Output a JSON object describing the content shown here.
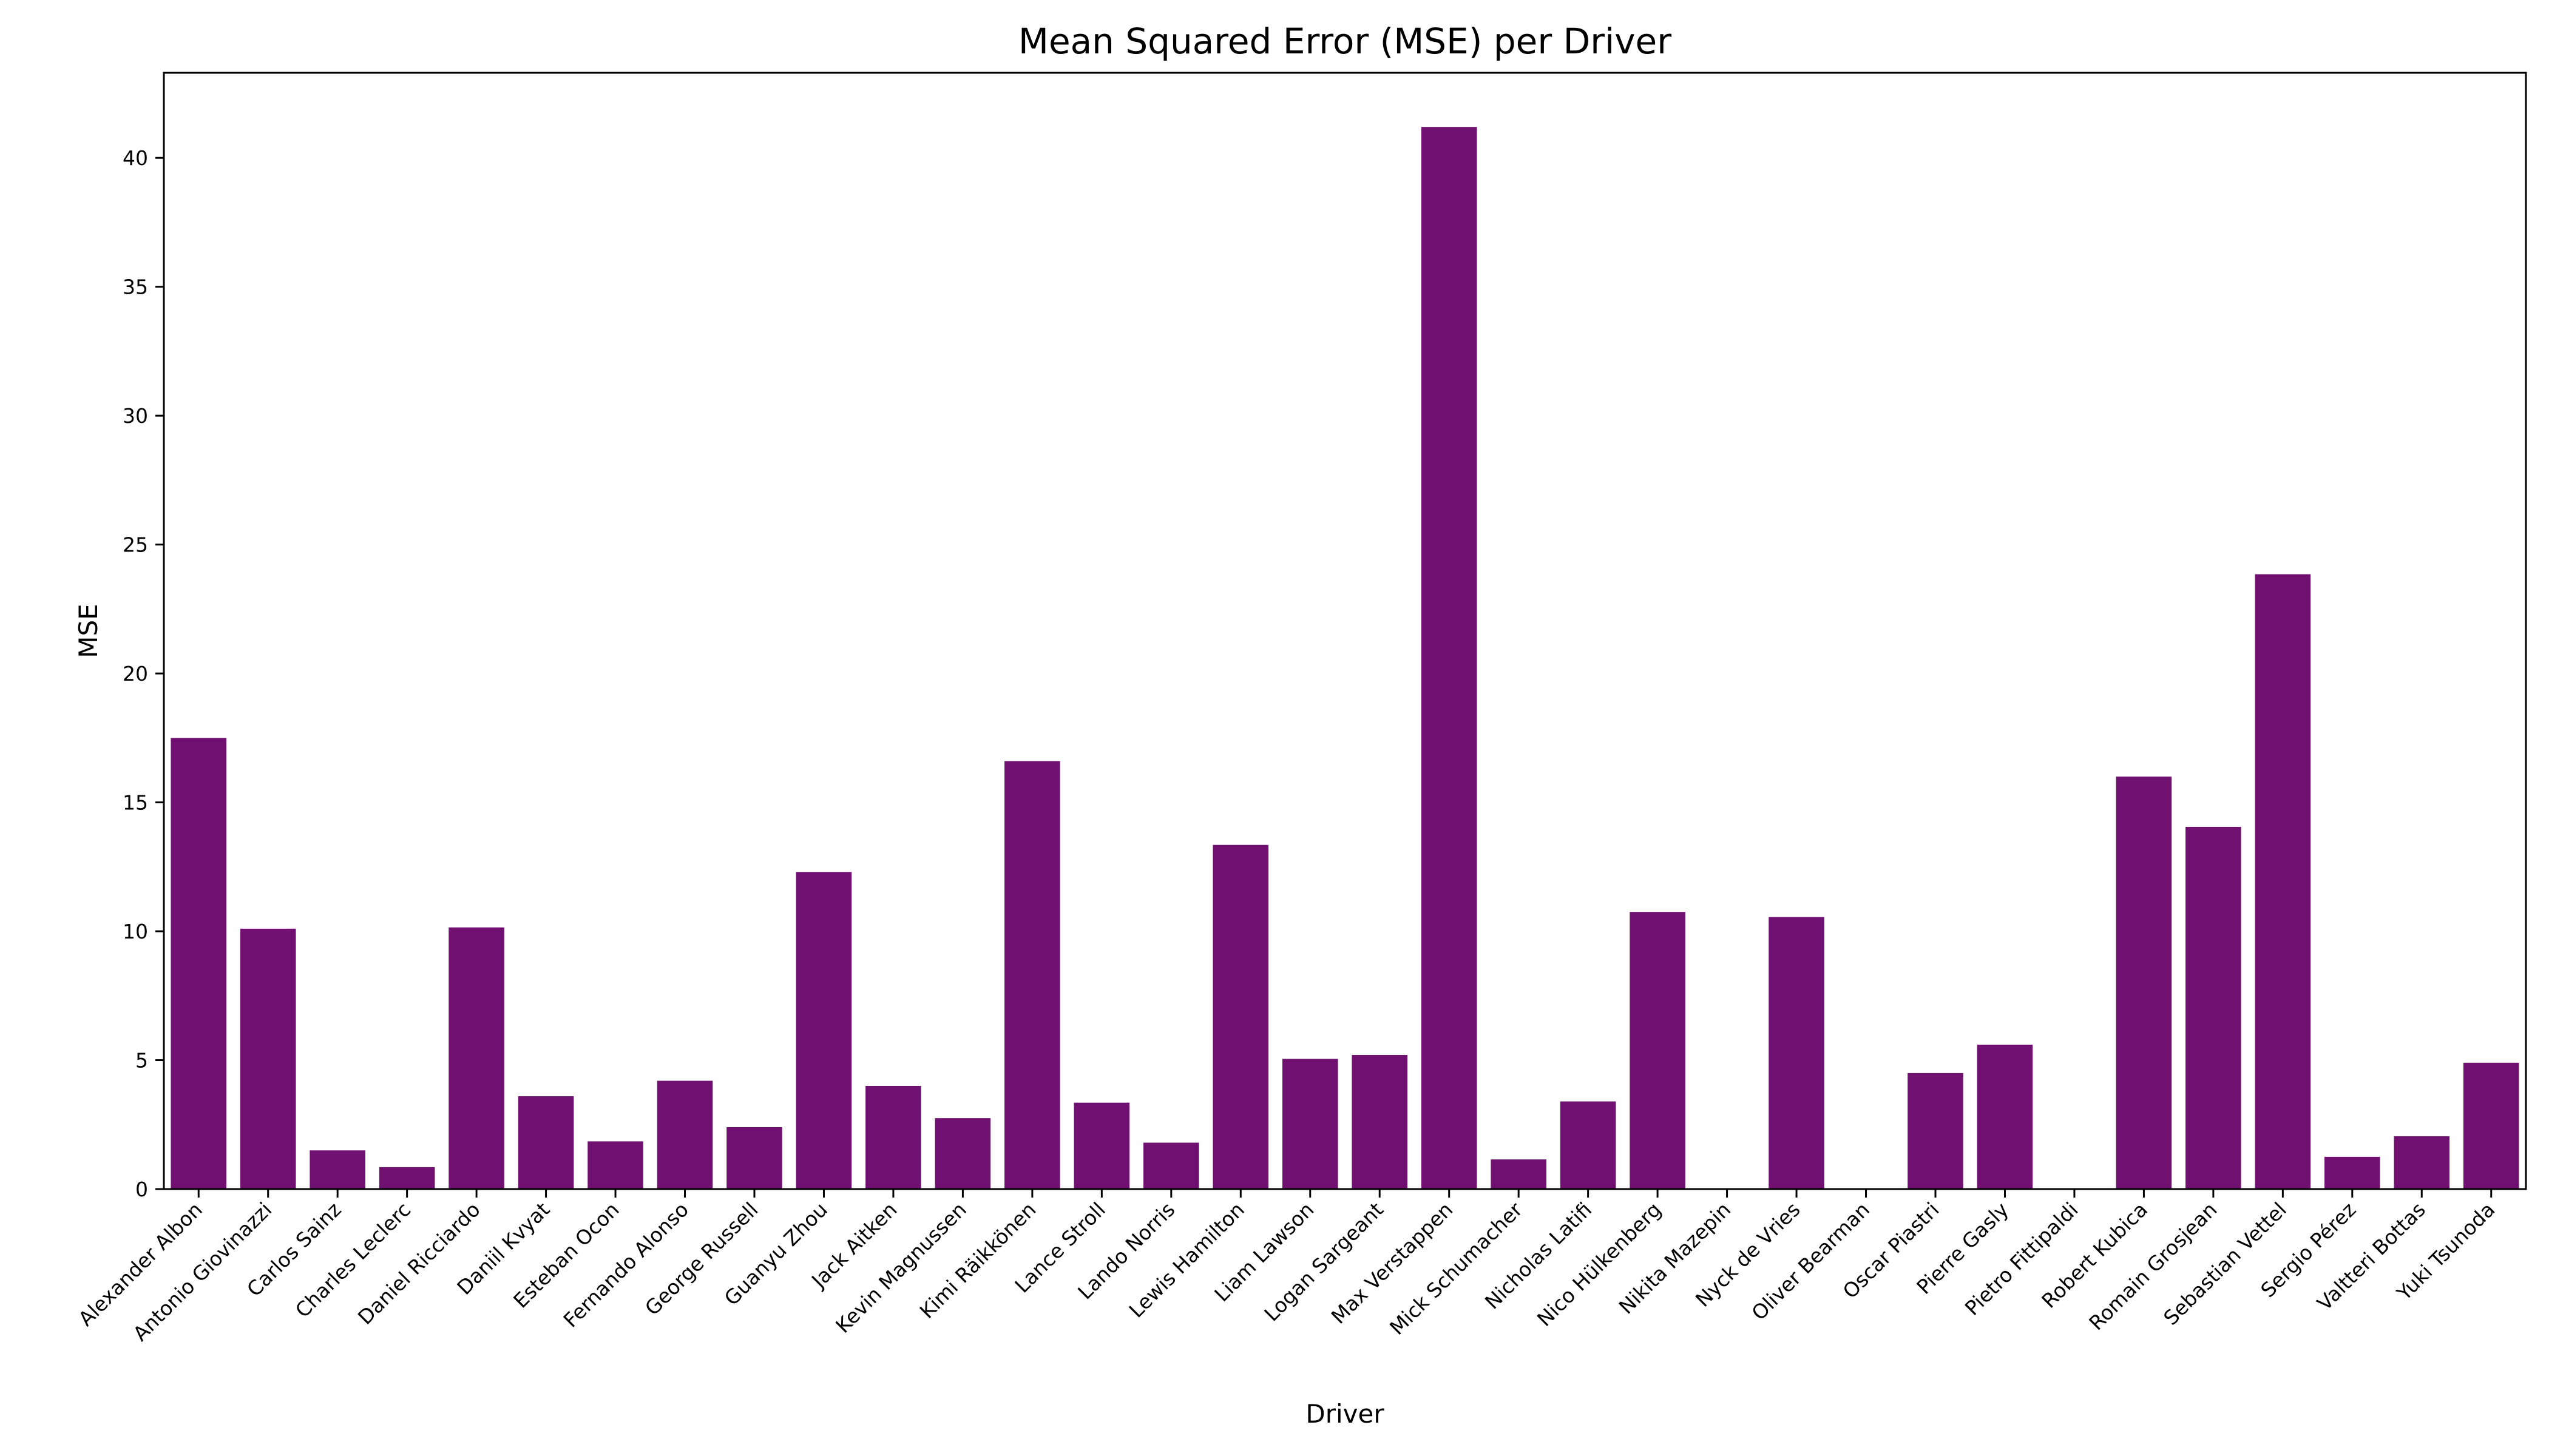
{
  "chart_data": {
    "type": "bar",
    "title": "Mean Squared Error (MSE) per Driver",
    "xlabel": "Driver",
    "ylabel": "MSE",
    "ylim": [
      0,
      43.3
    ],
    "yticks": [
      0,
      5,
      10,
      15,
      20,
      25,
      30,
      35,
      40
    ],
    "grid": false,
    "bar_color": "#701070",
    "categories": [
      "Alexander Albon",
      "Antonio Giovinazzi",
      "Carlos Sainz",
      "Charles Leclerc",
      "Daniel Ricciardo",
      "Daniil Kvyat",
      "Esteban Ocon",
      "Fernando Alonso",
      "George Russell",
      "Guanyu Zhou",
      "Jack Aitken",
      "Kevin Magnussen",
      "Kimi Räikkönen",
      "Lance Stroll",
      "Lando Norris",
      "Lewis Hamilton",
      "Liam Lawson",
      "Logan Sargeant",
      "Max Verstappen",
      "Mick Schumacher",
      "Nicholas Latifi",
      "Nico Hülkenberg",
      "Nikita Mazepin",
      "Nyck de Vries",
      "Oliver Bearman",
      "Oscar Piastri",
      "Pierre Gasly",
      "Pietro Fittipaldi",
      "Robert Kubica",
      "Romain Grosjean",
      "Sebastian Vettel",
      "Sergio Pérez",
      "Valtteri Bottas",
      "Yuki Tsunoda"
    ],
    "values": [
      17.5,
      10.1,
      1.5,
      0.85,
      10.15,
      3.6,
      1.85,
      4.2,
      2.4,
      12.3,
      4.0,
      2.75,
      16.6,
      3.35,
      1.8,
      13.35,
      5.05,
      5.2,
      41.2,
      1.15,
      3.4,
      10.75,
      0,
      10.55,
      0,
      4.5,
      5.6,
      0,
      16.0,
      14.05,
      23.85,
      1.25,
      2.05,
      4.9
    ]
  }
}
